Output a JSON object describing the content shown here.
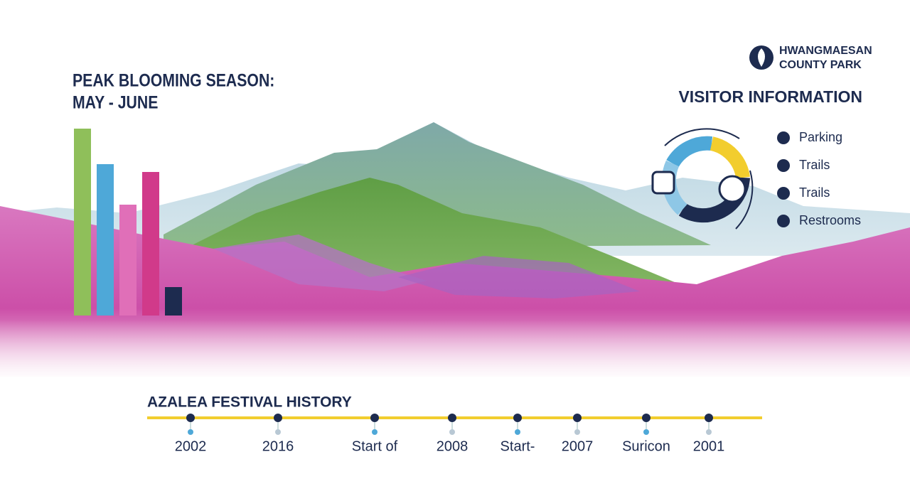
{
  "header": {
    "title_line1": "PEAK BLOOMING SEASON:",
    "title_line2": "MAY - JUNE"
  },
  "brand": {
    "line1": "HWANGMAESAN",
    "line2": "COUNTY PARK"
  },
  "visitor_info": {
    "title": "VISITOR INFORMATION",
    "items": [
      "Parking",
      "Trails",
      "Trails",
      "Restrooms"
    ]
  },
  "history": {
    "title": "AZALEA FESTIVAL HISTORY",
    "labels": [
      "2002",
      "2016",
      "Start of",
      "2008",
      "Start-",
      "2007",
      "Suricon",
      "2001"
    ]
  }
}
